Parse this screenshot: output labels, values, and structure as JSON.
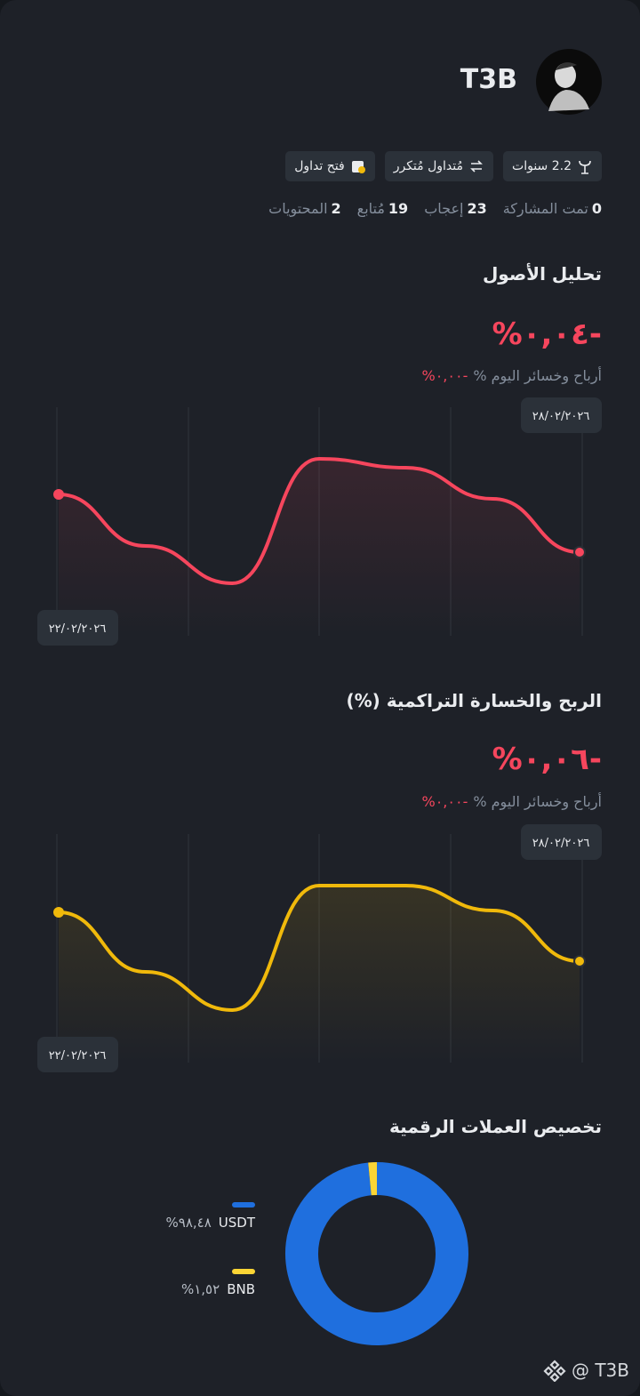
{
  "profile": {
    "name": "T3B",
    "badges": [
      "2.2 سنوات",
      "مُتداول مُتكرر",
      "فتح تداول"
    ],
    "stats": [
      {
        "value": 0,
        "label": "تمت المشاركة"
      },
      {
        "value": 23,
        "label": "إعجاب"
      },
      {
        "value": 19,
        "label": "مُتابع"
      },
      {
        "value": 2,
        "label": "المحتويات"
      }
    ]
  },
  "chart_data": [
    {
      "type": "line",
      "title": "تحليل الأصول",
      "change": "-٠,٠٤%",
      "today_label": "أرباح وخسائر اليوم %",
      "today_value": "-٠,٠٠%",
      "start_date": "٢٢/٠٢/٢٠٢٦",
      "end_date": "٢٨/٠٢/٢٠٢٦",
      "color": "#f6465d",
      "values": [
        10,
        4.2,
        0,
        14,
        13,
        9.5,
        3.5
      ]
    },
    {
      "type": "line",
      "title": "الربح والخسارة التراكمية (%)",
      "change": "-٠,٠٦%",
      "today_label": "أرباح وخسائر اليوم %",
      "today_value": "-٠,٠٠%",
      "start_date": "٢٢/٠٢/٢٠٢٦",
      "end_date": "٢٨/٠٢/٢٠٢٦",
      "color": "#f0b90b",
      "values": [
        11,
        4.3,
        0,
        14,
        14,
        11.2,
        5.5
      ]
    },
    {
      "type": "pie",
      "title": "تخصيص العملات الرقمية",
      "categories": [
        "USDT",
        "BNB"
      ],
      "values": [
        98.48,
        1.52
      ],
      "value_labels": [
        "٩٨,٤٨%",
        "١,٥٢%"
      ],
      "colors": [
        "#1f6fde",
        "#fcd535"
      ]
    }
  ],
  "footer": {
    "watermark": "@ T3B"
  }
}
